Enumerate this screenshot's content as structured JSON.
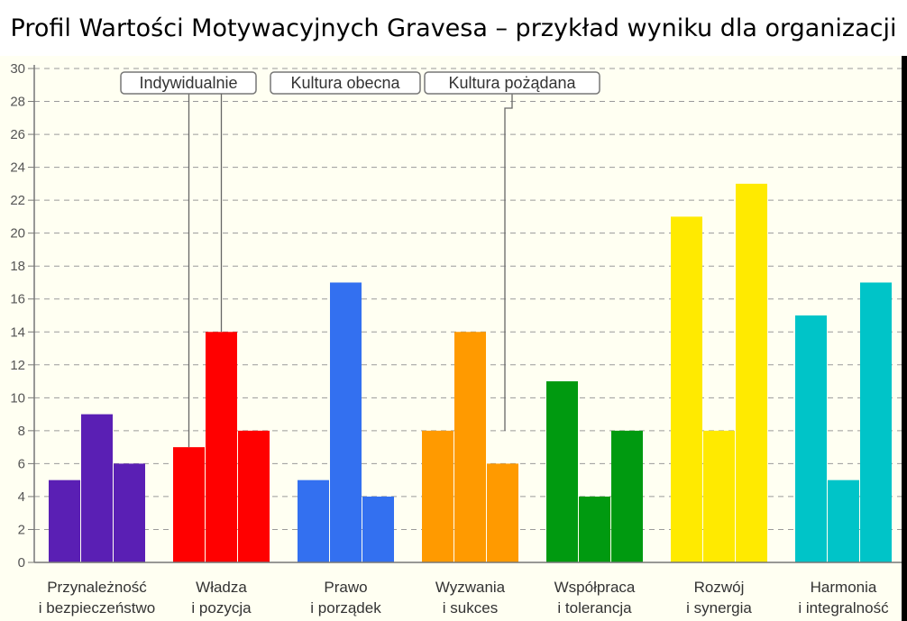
{
  "chart_data": {
    "type": "bar",
    "title": "Profil Wartości Motywacyjnych Gravesa – przykład wyniku dla organizacji",
    "categories": [
      [
        "Przynależność",
        "i bezpieczeństwo"
      ],
      [
        "Władza",
        "i pozycja"
      ],
      [
        "Prawo",
        "i porządek"
      ],
      [
        "Wyzwania",
        "i sukces"
      ],
      [
        "Współpraca",
        "i tolerancja"
      ],
      [
        "Rozwój",
        "i synergia"
      ],
      [
        "Harmonia",
        "i integralność"
      ]
    ],
    "category_colors": [
      "#5a1fb4",
      "#ff0000",
      "#3370f0",
      "#ff9a00",
      "#009a10",
      "#ffea00",
      "#00c4c8"
    ],
    "series": [
      {
        "name": "Indywidualnie",
        "values": [
          5,
          7,
          5,
          8,
          11,
          21,
          15
        ]
      },
      {
        "name": "Kultura obecna",
        "values": [
          9,
          14,
          17,
          14,
          4,
          8,
          5
        ]
      },
      {
        "name": "Kultura pożądana",
        "values": [
          6,
          8,
          4,
          6,
          8,
          23,
          17
        ]
      }
    ],
    "ylim": [
      0,
      30
    ],
    "yticks": [
      0,
      2,
      4,
      6,
      8,
      10,
      12,
      14,
      16,
      18,
      20,
      22,
      24,
      26,
      28,
      30
    ],
    "grid": true,
    "xlabel": "",
    "ylabel": ""
  },
  "colors": {
    "plot_background": "#fffff2",
    "gridline": "#9a9a9a",
    "axis": "#777777",
    "callout_border": "#777777",
    "outer_background": "#000000"
  }
}
